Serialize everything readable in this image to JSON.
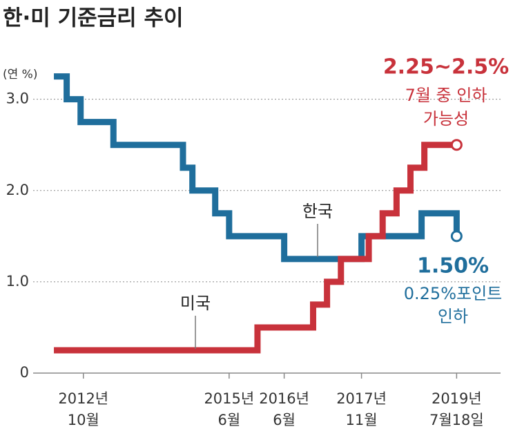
{
  "chart_data": {
    "type": "step-line",
    "title": "한·미 기준금리 추이",
    "y_unit_label": "(연 %)",
    "xlim": [
      2012.2,
      2020.33
    ],
    "ylim": [
      0,
      3.3
    ],
    "yticks": [
      0,
      {
        "value": 1,
        "label": "1.0"
      },
      {
        "value": 2,
        "label": "2.0"
      },
      {
        "value": 3,
        "label": "3.0"
      }
    ],
    "xticks": [
      {
        "value": 2012.83,
        "label": "2012년\n10월"
      },
      {
        "value": 2015.45,
        "label": "2015년\n6월"
      },
      {
        "value": 2016.44,
        "label": "2016년\n6월"
      },
      {
        "value": 2017.83,
        "label": "2017년\n11월"
      },
      {
        "value": 2019.54,
        "label": "2019년\n7월18일"
      }
    ],
    "grid": true,
    "series": [
      {
        "name": "한국",
        "color": "#1f6e9c",
        "x": [
          2012.3,
          2012.53,
          2012.78,
          2013.37,
          2014.62,
          2014.79,
          2015.2,
          2015.45,
          2016.44,
          2017.83,
          2018.91,
          2019.54
        ],
        "values": [
          3.25,
          3.0,
          2.75,
          2.5,
          2.25,
          2.0,
          1.75,
          1.5,
          1.25,
          1.5,
          1.75,
          1.5
        ]
      },
      {
        "name": "미국",
        "color": "#c8323b",
        "x": [
          2012.3,
          2015.96,
          2016.96,
          2017.21,
          2017.46,
          2017.96,
          2018.21,
          2018.46,
          2018.71,
          2018.96,
          2019.54
        ],
        "values": [
          0.25,
          0.5,
          0.75,
          1.0,
          1.25,
          1.5,
          1.75,
          2.0,
          2.25,
          2.5,
          2.5
        ]
      }
    ],
    "annotations": [
      {
        "series": 1,
        "lines": [
          "2.25~2.5%",
          "7월 중 인하",
          "가능성"
        ]
      },
      {
        "series": 0,
        "lines": [
          "1.50%",
          "0.25%포인트",
          "인하"
        ]
      }
    ]
  }
}
